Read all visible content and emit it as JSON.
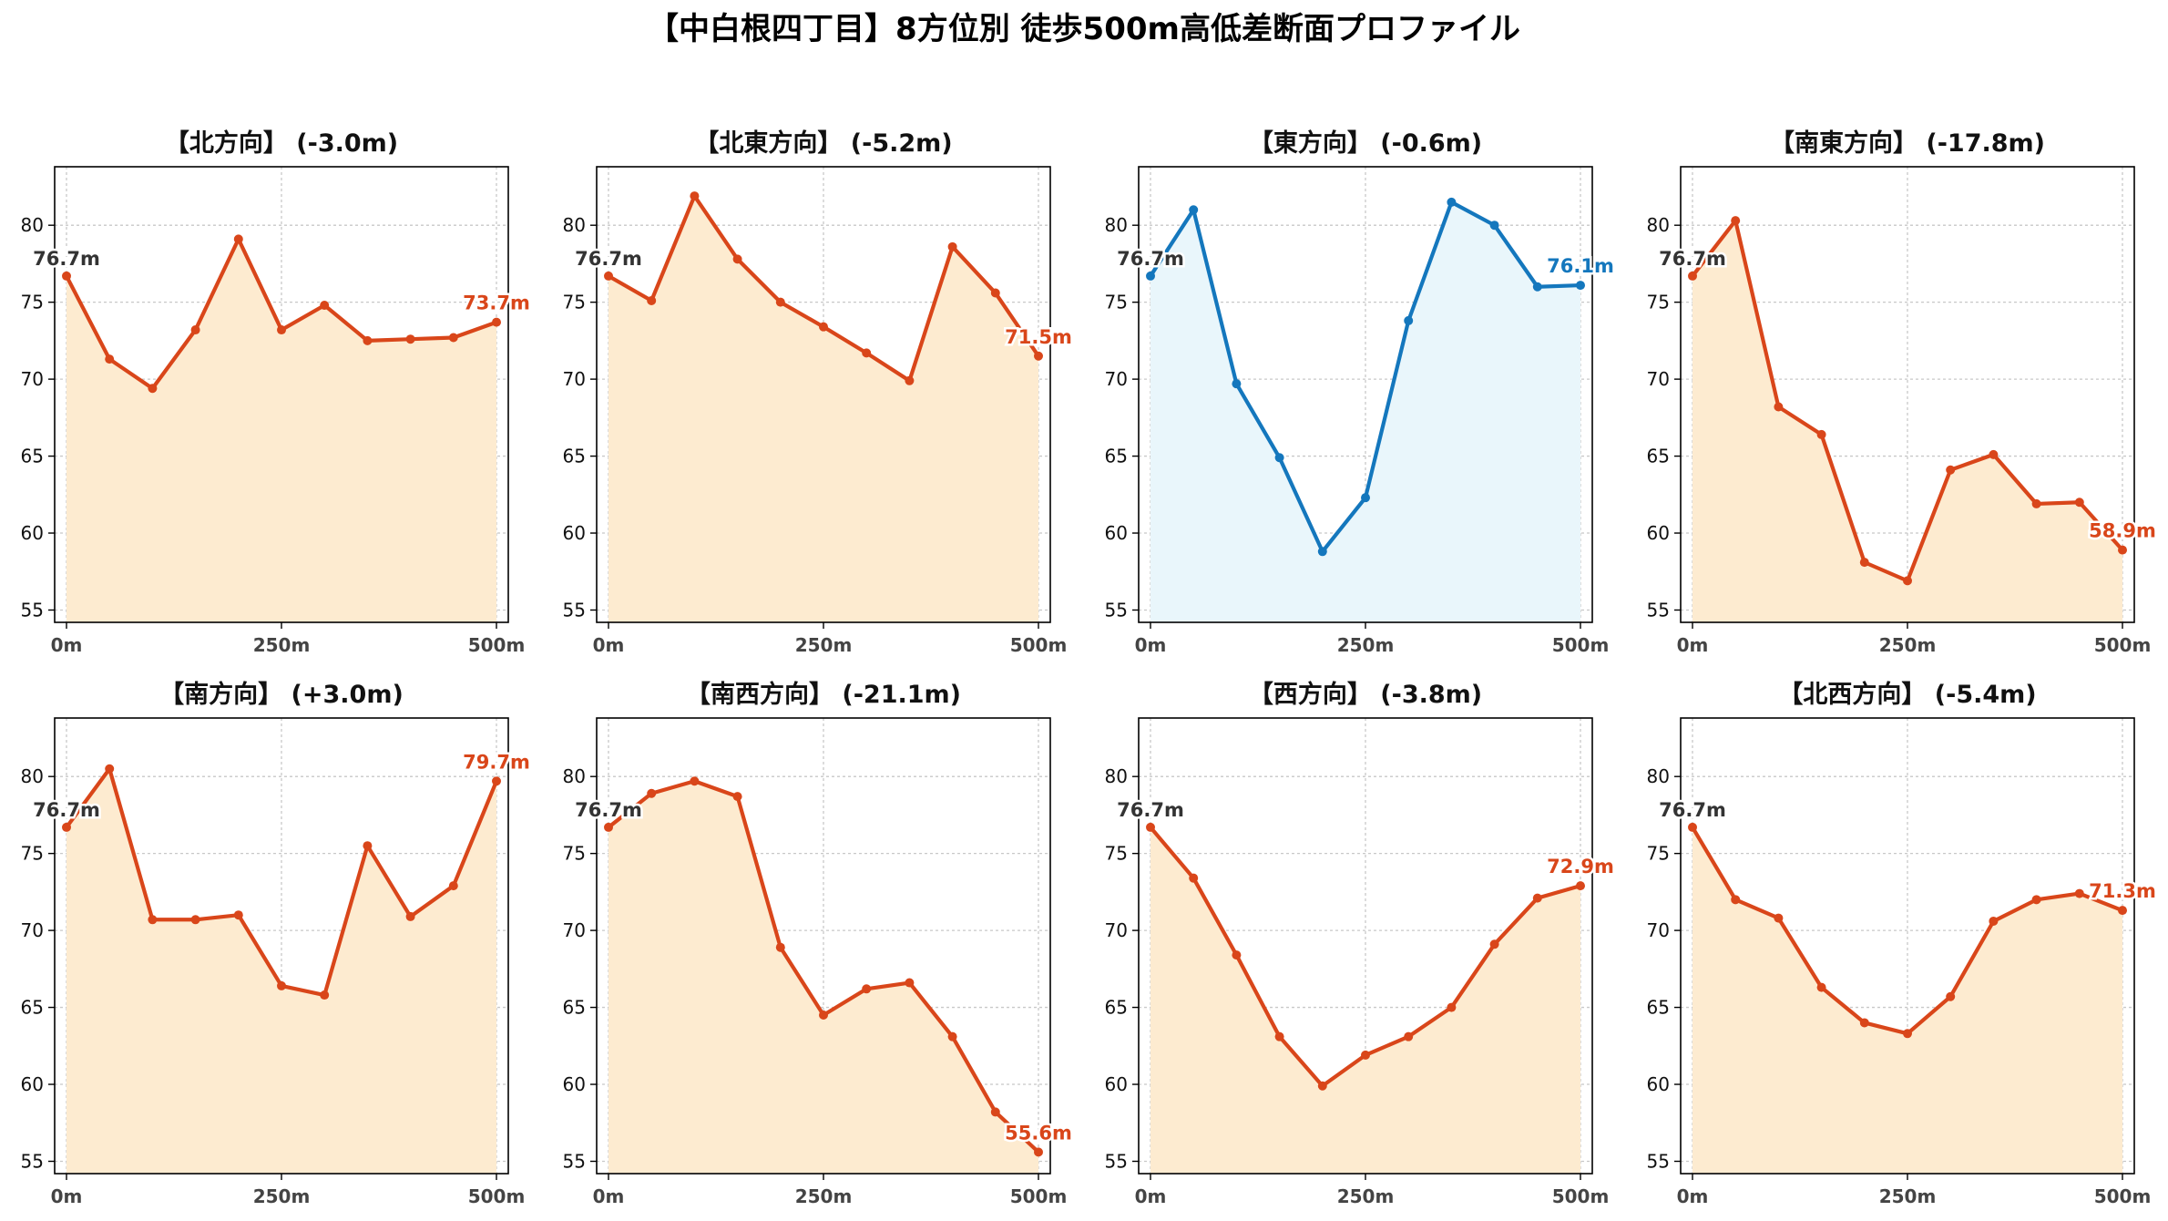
{
  "figure_title": "【中白根四丁目】8方位別 徒歩500m高低差断面プロファイル",
  "colors": {
    "down_line": "#d9461a",
    "down_fill": "#fdebd0",
    "up_line": "#1477bd",
    "up_fill": "#e9f6fb",
    "start_label": "#333333",
    "grid": "#c8c8c8",
    "axis": "#000000"
  },
  "chart_data": [
    {
      "type": "area",
      "title": "【北方向】 (-3.0m)",
      "x": [
        0,
        50,
        100,
        150,
        200,
        250,
        300,
        350,
        400,
        450,
        500
      ],
      "values": [
        76.7,
        71.3,
        69.4,
        73.2,
        79.1,
        73.2,
        74.8,
        72.5,
        72.6,
        72.7,
        73.7
      ],
      "start_label": "76.7m",
      "end_label": "73.7m",
      "trend": "down",
      "ylim": [
        54.2,
        83.8
      ],
      "yticks": [
        55,
        60,
        65,
        70,
        75,
        80
      ],
      "xticks": [
        0,
        250,
        500
      ],
      "xtick_labels": [
        "0m",
        "250m",
        "500m"
      ],
      "grid": true
    },
    {
      "type": "area",
      "title": "【北東方向】 (-5.2m)",
      "x": [
        0,
        50,
        100,
        150,
        200,
        250,
        300,
        350,
        400,
        450,
        500
      ],
      "values": [
        76.7,
        75.1,
        81.9,
        77.8,
        75.0,
        73.4,
        71.7,
        69.9,
        78.6,
        75.6,
        71.5
      ],
      "start_label": "76.7m",
      "end_label": "71.5m",
      "trend": "down",
      "ylim": [
        54.2,
        83.8
      ],
      "yticks": [
        55,
        60,
        65,
        70,
        75,
        80
      ],
      "xticks": [
        0,
        250,
        500
      ],
      "xtick_labels": [
        "0m",
        "250m",
        "500m"
      ],
      "grid": true
    },
    {
      "type": "area",
      "title": "【東方向】 (-0.6m)",
      "x": [
        0,
        50,
        100,
        150,
        200,
        250,
        300,
        350,
        400,
        450,
        500
      ],
      "values": [
        76.7,
        81.0,
        69.7,
        64.9,
        58.8,
        62.3,
        73.8,
        81.5,
        80.0,
        76.0,
        76.1
      ],
      "start_label": "76.7m",
      "end_label": "76.1m",
      "trend": "flat",
      "ylim": [
        54.2,
        83.8
      ],
      "yticks": [
        55,
        60,
        65,
        70,
        75,
        80
      ],
      "xticks": [
        0,
        250,
        500
      ],
      "xtick_labels": [
        "0m",
        "250m",
        "500m"
      ],
      "grid": true
    },
    {
      "type": "area",
      "title": "【南東方向】 (-17.8m)",
      "x": [
        0,
        50,
        100,
        150,
        200,
        250,
        300,
        350,
        400,
        450,
        500
      ],
      "values": [
        76.7,
        80.3,
        68.2,
        66.4,
        58.1,
        56.9,
        64.1,
        65.1,
        61.9,
        62.0,
        58.9
      ],
      "start_label": "76.7m",
      "end_label": "58.9m",
      "trend": "down",
      "ylim": [
        54.2,
        83.8
      ],
      "yticks": [
        55,
        60,
        65,
        70,
        75,
        80
      ],
      "xticks": [
        0,
        250,
        500
      ],
      "xtick_labels": [
        "0m",
        "250m",
        "500m"
      ],
      "grid": true
    },
    {
      "type": "area",
      "title": "【南方向】 (+3.0m)",
      "x": [
        0,
        50,
        100,
        150,
        200,
        250,
        300,
        350,
        400,
        450,
        500
      ],
      "values": [
        76.7,
        80.5,
        70.7,
        70.7,
        71.0,
        66.4,
        65.8,
        75.5,
        70.9,
        72.9,
        79.7
      ],
      "start_label": "76.7m",
      "end_label": "79.7m",
      "trend": "up",
      "ylim": [
        54.2,
        83.8
      ],
      "yticks": [
        55,
        60,
        65,
        70,
        75,
        80
      ],
      "xticks": [
        0,
        250,
        500
      ],
      "xtick_labels": [
        "0m",
        "250m",
        "500m"
      ],
      "grid": true
    },
    {
      "type": "area",
      "title": "【南西方向】 (-21.1m)",
      "x": [
        0,
        50,
        100,
        150,
        200,
        250,
        300,
        350,
        400,
        450,
        500
      ],
      "values": [
        76.7,
        78.9,
        79.7,
        78.7,
        68.9,
        64.5,
        66.2,
        66.6,
        63.1,
        58.2,
        55.6
      ],
      "start_label": "76.7m",
      "end_label": "55.6m",
      "trend": "down",
      "ylim": [
        54.2,
        83.8
      ],
      "yticks": [
        55,
        60,
        65,
        70,
        75,
        80
      ],
      "xticks": [
        0,
        250,
        500
      ],
      "xtick_labels": [
        "0m",
        "250m",
        "500m"
      ],
      "grid": true
    },
    {
      "type": "area",
      "title": "【西方向】 (-3.8m)",
      "x": [
        0,
        50,
        100,
        150,
        200,
        250,
        300,
        350,
        400,
        450,
        500
      ],
      "values": [
        76.7,
        73.4,
        68.4,
        63.1,
        59.9,
        61.9,
        63.1,
        65.0,
        69.1,
        72.1,
        72.9
      ],
      "start_label": "76.7m",
      "end_label": "72.9m",
      "trend": "down",
      "ylim": [
        54.2,
        83.8
      ],
      "yticks": [
        55,
        60,
        65,
        70,
        75,
        80
      ],
      "xticks": [
        0,
        250,
        500
      ],
      "xtick_labels": [
        "0m",
        "250m",
        "500m"
      ],
      "grid": true
    },
    {
      "type": "area",
      "title": "【北西方向】 (-5.4m)",
      "x": [
        0,
        50,
        100,
        150,
        200,
        250,
        300,
        350,
        400,
        450,
        500
      ],
      "values": [
        76.7,
        72.0,
        70.8,
        66.3,
        64.0,
        63.3,
        65.7,
        70.6,
        72.0,
        72.4,
        71.3
      ],
      "start_label": "76.7m",
      "end_label": "71.3m",
      "trend": "down",
      "ylim": [
        54.2,
        83.8
      ],
      "yticks": [
        55,
        60,
        65,
        70,
        75,
        80
      ],
      "xticks": [
        0,
        250,
        500
      ],
      "xtick_labels": [
        "0m",
        "250m",
        "500m"
      ],
      "grid": true
    }
  ]
}
